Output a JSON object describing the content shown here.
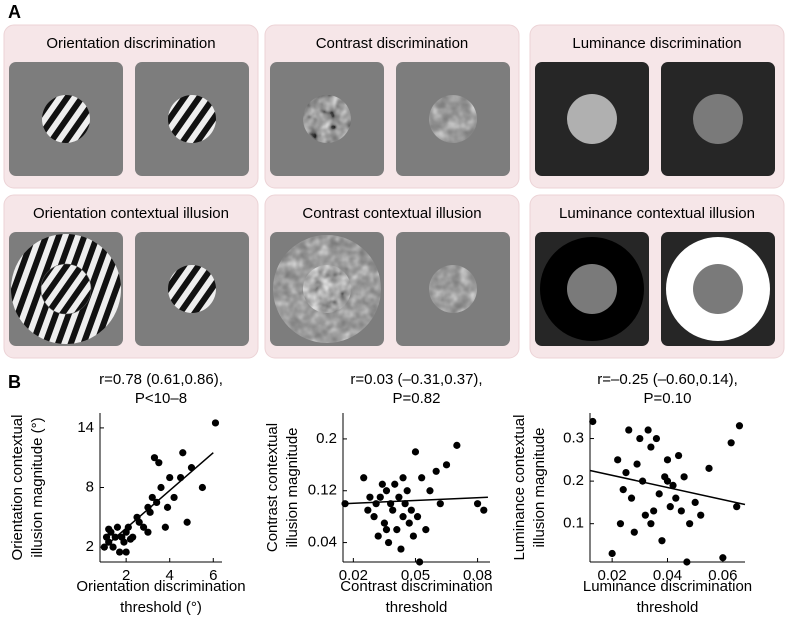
{
  "panel_a": {
    "label": "A",
    "titles": [
      "Orientation discrimination",
      "Contrast discrimination",
      "Luminance discrimination",
      "Orientation contextual  illusion",
      "Contrast contextual illusion",
      "Luminance contextual illusion"
    ]
  },
  "panel_b": {
    "label": "B"
  },
  "chart_data": [
    {
      "type": "scatter",
      "title": [
        "r=0.78 (0.61,0.86),",
        "P<10–8"
      ],
      "xlabel": [
        "Orientation discrimination",
        "threshold (°)"
      ],
      "ylabel": [
        "Orientation contextual",
        "illusion magnitude (°)"
      ],
      "xlim": [
        0.8,
        6.4
      ],
      "ylim": [
        0.5,
        15.5
      ],
      "xticks": [
        2,
        4,
        6
      ],
      "yticks": [
        2,
        8,
        14
      ],
      "color": "#000000",
      "x": [
        1,
        1.1,
        1.2,
        1.3,
        1.4,
        1.5,
        1.6,
        1.7,
        1.8,
        1.9,
        2,
        2,
        2.1,
        2.3,
        2.5,
        2.6,
        2.8,
        3,
        3,
        3.1,
        3.2,
        3.3,
        3.4,
        3.5,
        3.6,
        3.8,
        3.9,
        4,
        4.2,
        4.5,
        4.6,
        4.8,
        5,
        5.5,
        6.1,
        1.2,
        2.2
      ],
      "y": [
        2,
        3,
        2.5,
        3.5,
        2,
        3,
        4,
        1.5,
        3,
        2.5,
        3.5,
        1.5,
        4,
        3,
        5,
        4.5,
        4,
        6,
        3.5,
        5.5,
        7,
        11,
        6.5,
        10.5,
        8,
        4,
        6,
        9,
        7,
        9,
        11.5,
        4.5,
        10,
        8,
        14.5,
        3.8,
        2.8
      ],
      "fit": {
        "x": [
          1,
          6
        ],
        "y": [
          2,
          11.5
        ]
      }
    },
    {
      "type": "scatter",
      "title": [
        "r=0.03 (–0.31,0.37),",
        "P=0.82"
      ],
      "xlabel": [
        "Contrast discrimination",
        "threshold"
      ],
      "ylabel": [
        "Contrast contextual",
        "illusion magnitude"
      ],
      "xlim": [
        0.015,
        0.086
      ],
      "ylim": [
        0.01,
        0.24
      ],
      "xticks": [
        0.02,
        0.05,
        0.08
      ],
      "yticks": [
        0.04,
        0.12,
        0.2
      ],
      "color": "#000000",
      "x": [
        0.016,
        0.025,
        0.027,
        0.03,
        0.032,
        0.033,
        0.034,
        0.035,
        0.036,
        0.037,
        0.038,
        0.039,
        0.04,
        0.041,
        0.042,
        0.043,
        0.044,
        0.045,
        0.046,
        0.047,
        0.048,
        0.05,
        0.051,
        0.052,
        0.053,
        0.055,
        0.057,
        0.06,
        0.062,
        0.065,
        0.07,
        0.08,
        0.083,
        0.036,
        0.028,
        0.049,
        0.044,
        0.031
      ],
      "y": [
        0.1,
        0.14,
        0.09,
        0.08,
        0.05,
        0.11,
        0.13,
        0.07,
        0.12,
        0.04,
        0.1,
        0.09,
        0.13,
        0.06,
        0.11,
        0.03,
        0.08,
        0.1,
        0.12,
        0.07,
        0.09,
        0.18,
        0.08,
        0.01,
        0.14,
        0.06,
        0.12,
        0.15,
        0.1,
        0.16,
        0.19,
        0.1,
        0.09,
        0.06,
        0.11,
        0.05,
        0.14,
        0.1
      ],
      "fit": {
        "x": [
          0.015,
          0.085
        ],
        "y": [
          0.1,
          0.11
        ]
      }
    },
    {
      "type": "scatter",
      "title": [
        "r=–0.25 (–0.60,0.14),",
        "P=0.10"
      ],
      "xlabel": [
        "Luminance discrimination",
        "threshold"
      ],
      "ylabel": [
        "Luminance contextual",
        "illusion magnitude"
      ],
      "xlim": [
        0.012,
        0.068
      ],
      "ylim": [
        0.01,
        0.36
      ],
      "xticks": [
        0.02,
        0.04,
        0.06
      ],
      "yticks": [
        0.1,
        0.2,
        0.3
      ],
      "color": "#000000",
      "x": [
        0.013,
        0.02,
        0.022,
        0.023,
        0.024,
        0.025,
        0.026,
        0.027,
        0.028,
        0.03,
        0.031,
        0.032,
        0.033,
        0.034,
        0.035,
        0.036,
        0.037,
        0.038,
        0.039,
        0.04,
        0.041,
        0.042,
        0.043,
        0.044,
        0.045,
        0.046,
        0.047,
        0.048,
        0.05,
        0.052,
        0.055,
        0.06,
        0.063,
        0.065,
        0.066,
        0.029,
        0.034,
        0.04
      ],
      "y": [
        0.34,
        0.03,
        0.25,
        0.1,
        0.18,
        0.22,
        0.32,
        0.16,
        0.08,
        0.3,
        0.2,
        0.12,
        0.32,
        0.28,
        0.13,
        0.3,
        0.17,
        0.06,
        0.21,
        0.25,
        0.14,
        0.19,
        0.16,
        0.26,
        0.13,
        0.21,
        0.01,
        0.1,
        0.15,
        0.12,
        0.23,
        0.02,
        0.29,
        0.14,
        0.33,
        0.24,
        0.1,
        0.2
      ],
      "fit": {
        "x": [
          0.012,
          0.068
        ],
        "y": [
          0.225,
          0.145
        ]
      }
    }
  ]
}
